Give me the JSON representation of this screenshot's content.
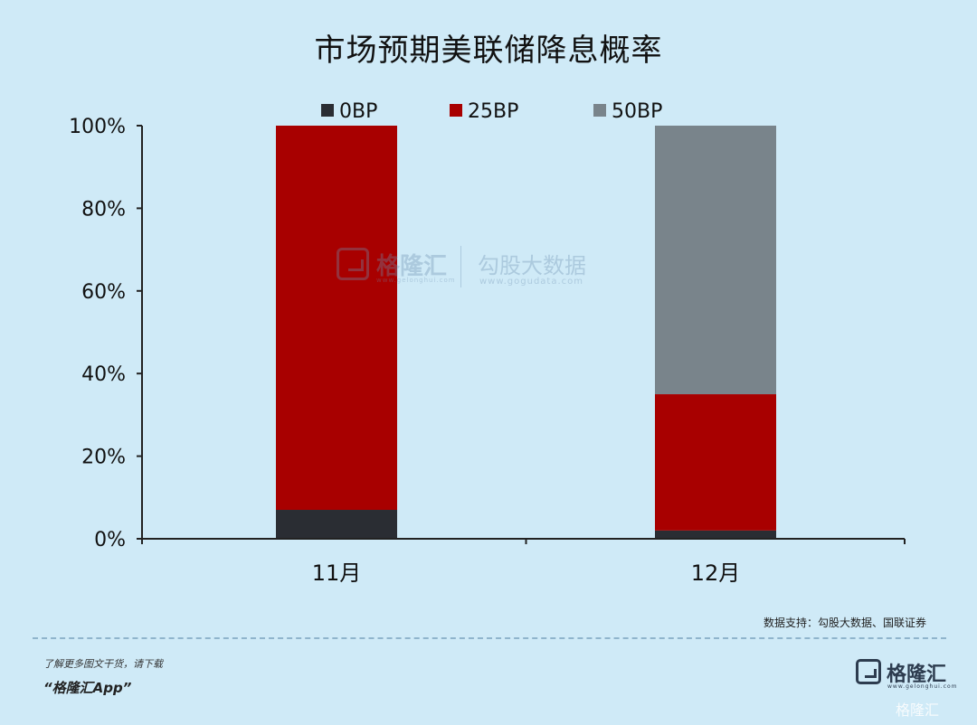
{
  "chart_data": {
    "type": "bar",
    "stacked": true,
    "title": "市场预期美联储降息概率",
    "categories": [
      "11月",
      "12月"
    ],
    "series": [
      {
        "name": "0BP",
        "color": "#2a2d33",
        "values": [
          7,
          2
        ]
      },
      {
        "name": "25BP",
        "color": "#a80000",
        "values": [
          93,
          33
        ]
      },
      {
        "name": "50BP",
        "color": "#79848b",
        "values": [
          0,
          65
        ]
      }
    ],
    "yticks": [
      "0%",
      "20%",
      "40%",
      "60%",
      "80%",
      "100%"
    ],
    "ylim": [
      0,
      100
    ],
    "grid": false,
    "legend": "top"
  },
  "watermark": {
    "brand": "格隆汇",
    "brand_sub": "www.gelonghui.com",
    "partner": "勾股大数据",
    "partner_sub": "www.gogudata.com"
  },
  "footer": {
    "source": "数据支持：勾股大数据、国联证券",
    "promo": "了解更多图文干货，请下载",
    "promo_app": "“格隆汇App”",
    "brand": "格隆汇",
    "brand_sub": "www.gelonghui.com",
    "corner": "格隆汇"
  }
}
